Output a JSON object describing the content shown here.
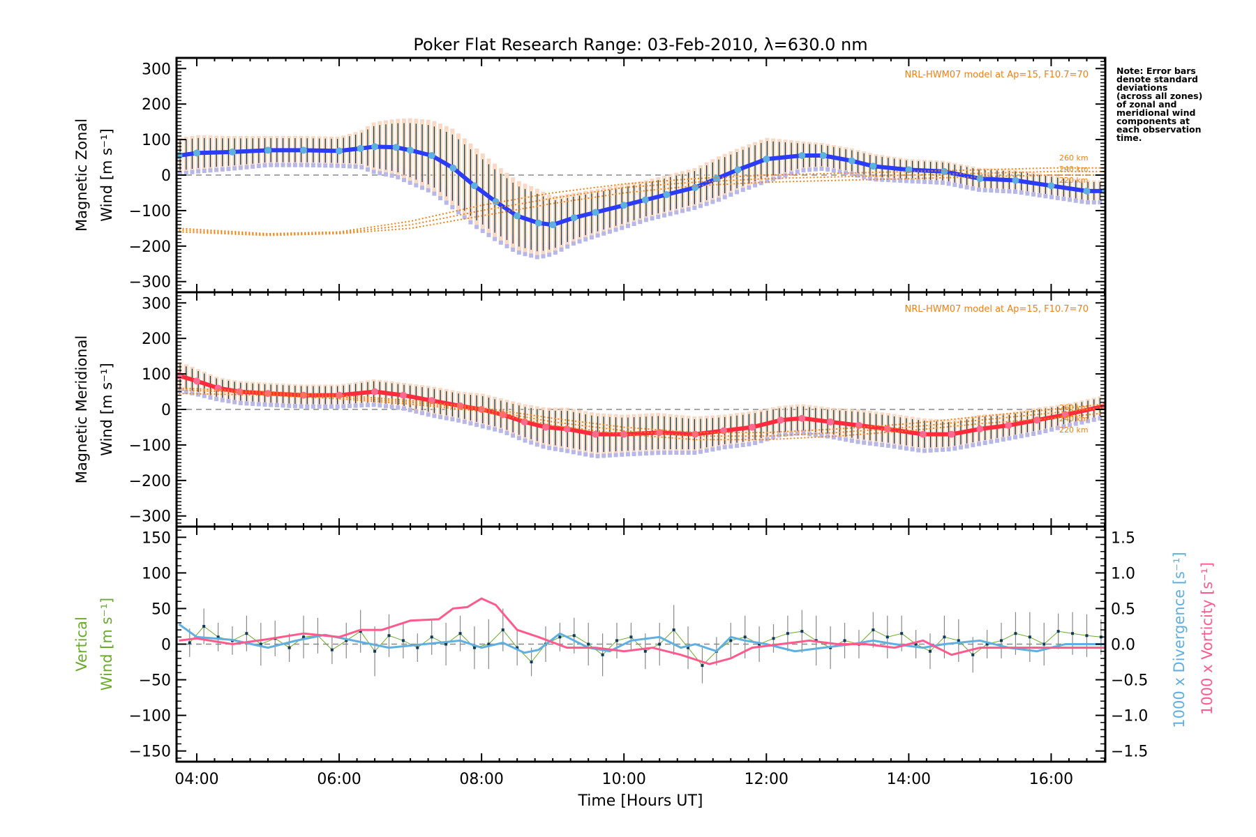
{
  "chart_data": [
    {
      "type": "line",
      "title": "Poker Flat Research Range: 03-Feb-2010, λ=630.0 nm",
      "ylabel_line1": "Magnetic Zonal",
      "ylabel_line2": "Wind [m s⁻¹]",
      "ylim": [
        -330,
        330
      ],
      "yticks": [
        300,
        200,
        100,
        0,
        -100,
        -200,
        -300
      ],
      "annotation": "NRL-HWM07 model at Ap=15, F10.7=70",
      "model_altitude_labels": [
        "260 km",
        "240 km",
        "220 km"
      ],
      "series": [
        {
          "name": "Zonal wind (mean)",
          "color": "#2a3cf5",
          "x": [
            3.75,
            4.0,
            4.5,
            5.0,
            5.5,
            6.0,
            6.3,
            6.5,
            6.8,
            7.0,
            7.3,
            7.6,
            7.9,
            8.2,
            8.5,
            8.8,
            9.0,
            9.3,
            9.6,
            10.0,
            10.3,
            10.6,
            11.0,
            11.3,
            11.6,
            12.0,
            12.5,
            12.8,
            13.2,
            13.5,
            14.0,
            14.5,
            15.0,
            15.5,
            16.0,
            16.5,
            16.76
          ],
          "y": [
            55,
            62,
            65,
            70,
            70,
            68,
            75,
            80,
            78,
            70,
            55,
            20,
            -30,
            -75,
            -115,
            -135,
            -140,
            -120,
            -105,
            -85,
            -70,
            -55,
            -35,
            -10,
            15,
            45,
            55,
            55,
            40,
            25,
            15,
            10,
            -10,
            -15,
            -30,
            -45,
            -45
          ],
          "error": [
            50,
            50,
            45,
            40,
            40,
            40,
            50,
            70,
            80,
            90,
            100,
            110,
            110,
            105,
            100,
            95,
            80,
            70,
            65,
            60,
            55,
            55,
            55,
            60,
            60,
            60,
            40,
            35,
            35,
            35,
            30,
            30,
            30,
            30,
            30,
            30,
            30
          ]
        },
        {
          "name": "NRL-HWM07 260 km",
          "color": "#f08010",
          "style": "dotted",
          "x": [
            3.75,
            5.0,
            6.0,
            7.0,
            8.0,
            9.0,
            10.0,
            11.0,
            12.0,
            13.0,
            14.0,
            15.0,
            16.0,
            16.76
          ],
          "y": [
            -150,
            -165,
            -160,
            -130,
            -85,
            -50,
            -25,
            -10,
            0,
            5,
            10,
            15,
            20,
            20
          ]
        },
        {
          "name": "NRL-HWM07 240 km",
          "color": "#f08010",
          "style": "dotted",
          "x": [
            3.75,
            5.0,
            6.0,
            7.0,
            8.0,
            9.0,
            10.0,
            11.0,
            12.0,
            13.0,
            14.0,
            15.0,
            16.0,
            16.76
          ],
          "y": [
            -155,
            -168,
            -163,
            -140,
            -100,
            -65,
            -35,
            -20,
            -10,
            -5,
            0,
            5,
            10,
            10
          ]
        },
        {
          "name": "NRL-HWM07 220 km",
          "color": "#f08010",
          "style": "dotted",
          "x": [
            3.75,
            5.0,
            6.0,
            7.0,
            8.0,
            9.0,
            10.0,
            11.0,
            12.0,
            13.0,
            14.0,
            15.0,
            16.0,
            16.76
          ],
          "y": [
            -160,
            -170,
            -165,
            -150,
            -115,
            -80,
            -50,
            -30,
            -20,
            -15,
            -10,
            -5,
            0,
            0
          ]
        }
      ]
    },
    {
      "type": "line",
      "ylabel_line1": "Magnetic Meridional",
      "ylabel_line2": "Wind [m s⁻¹]",
      "ylim": [
        -330,
        330
      ],
      "yticks": [
        300,
        200,
        100,
        0,
        -100,
        -200,
        -300
      ],
      "annotation": "NRL-HWM07 model at Ap=15, F10.7=70",
      "model_altitude_labels": [
        "260 km",
        "240 km",
        "220 km"
      ],
      "series": [
        {
          "name": "Meridional wind (mean)",
          "color": "#ff2a3c",
          "x": [
            3.75,
            4.0,
            4.3,
            4.6,
            5.0,
            5.5,
            6.0,
            6.5,
            6.9,
            7.3,
            7.7,
            8.0,
            8.3,
            8.6,
            8.9,
            9.2,
            9.6,
            10.0,
            10.5,
            11.0,
            11.4,
            11.8,
            12.2,
            12.5,
            12.9,
            13.3,
            13.7,
            14.2,
            14.6,
            15.0,
            15.4,
            15.8,
            16.2,
            16.76
          ],
          "y": [
            95,
            80,
            60,
            50,
            45,
            40,
            40,
            50,
            40,
            25,
            10,
            0,
            -15,
            -35,
            -50,
            -55,
            -70,
            -70,
            -65,
            -70,
            -60,
            -50,
            -30,
            -25,
            -35,
            -45,
            -55,
            -70,
            -70,
            -55,
            -45,
            -30,
            -15,
            10
          ],
          "error": [
            40,
            35,
            30,
            30,
            30,
            30,
            30,
            35,
            35,
            40,
            40,
            45,
            45,
            50,
            55,
            60,
            60,
            55,
            55,
            50,
            45,
            45,
            40,
            40,
            40,
            45,
            45,
            45,
            40,
            40,
            35,
            35,
            30,
            30
          ]
        },
        {
          "name": "NRL-HWM07 260 km",
          "color": "#f08010",
          "style": "dotted",
          "x": [
            3.75,
            5.0,
            6.0,
            7.0,
            8.0,
            9.0,
            10.0,
            11.0,
            12.0,
            13.0,
            14.0,
            15.0,
            16.0,
            16.76
          ],
          "y": [
            60,
            50,
            40,
            25,
            5,
            -25,
            -50,
            -65,
            -65,
            -55,
            -40,
            -20,
            0,
            15
          ]
        },
        {
          "name": "NRL-HWM07 240 km",
          "color": "#f08010",
          "style": "dotted",
          "x": [
            3.75,
            5.0,
            6.0,
            7.0,
            8.0,
            9.0,
            10.0,
            11.0,
            12.0,
            13.0,
            14.0,
            15.0,
            16.0,
            16.76
          ],
          "y": [
            55,
            45,
            35,
            20,
            0,
            -35,
            -60,
            -75,
            -75,
            -65,
            -50,
            -30,
            -10,
            5
          ]
        },
        {
          "name": "NRL-HWM07 220 km",
          "color": "#f08010",
          "style": "dotted",
          "x": [
            3.75,
            5.0,
            6.0,
            7.0,
            8.0,
            9.0,
            10.0,
            11.0,
            12.0,
            13.0,
            14.0,
            15.0,
            16.0,
            16.76
          ],
          "y": [
            45,
            40,
            30,
            15,
            -5,
            -45,
            -70,
            -85,
            -85,
            -75,
            -60,
            -40,
            -25,
            -10
          ]
        }
      ]
    },
    {
      "type": "line",
      "ylabel_line1": "Vertical",
      "ylabel_line2": "Wind [m s⁻¹]",
      "ylim": [
        -165,
        165
      ],
      "yticks": [
        150,
        100,
        50,
        0,
        -50,
        -100,
        -150
      ],
      "y2label_divergence": "1000 x Divergence [s⁻¹]",
      "y2label_vorticity": "1000 x Vorticity [s⁻¹]",
      "y2lim": [
        -1.65,
        1.65
      ],
      "y2ticks": [
        "1.5",
        "1.0",
        "0.5",
        "0.0",
        "−0.5",
        "−1.0",
        "−1.5"
      ],
      "xlabel": "Time [Hours UT]",
      "xlim": [
        3.716,
        16.76
      ],
      "xticks": [
        4,
        6,
        8,
        10,
        12,
        14,
        16
      ],
      "xticklabels": [
        "04:00",
        "06:00",
        "08:00",
        "10:00",
        "12:00",
        "14:00",
        "16:00"
      ],
      "series": [
        {
          "name": "Vertical wind",
          "color": "#6aaa2a",
          "axis": "left",
          "x": [
            3.9,
            4.1,
            4.3,
            4.5,
            4.7,
            4.9,
            5.1,
            5.3,
            5.5,
            5.7,
            5.9,
            6.1,
            6.3,
            6.5,
            6.7,
            6.9,
            7.1,
            7.3,
            7.5,
            7.7,
            7.9,
            8.1,
            8.3,
            8.5,
            8.7,
            8.9,
            9.1,
            9.3,
            9.5,
            9.7,
            9.9,
            10.1,
            10.3,
            10.5,
            10.7,
            10.9,
            11.1,
            11.3,
            11.5,
            11.7,
            11.9,
            12.1,
            12.3,
            12.5,
            12.7,
            12.9,
            13.1,
            13.3,
            13.5,
            13.7,
            13.9,
            14.1,
            14.3,
            14.5,
            14.7,
            14.9,
            15.1,
            15.3,
            15.5,
            15.7,
            15.9,
            16.1,
            16.3,
            16.5,
            16.7
          ],
          "y": [
            2,
            25,
            10,
            5,
            15,
            0,
            8,
            -5,
            10,
            12,
            -8,
            5,
            18,
            -10,
            12,
            5,
            -5,
            10,
            0,
            15,
            -5,
            0,
            20,
            -5,
            -25,
            0,
            10,
            12,
            0,
            -15,
            5,
            10,
            -10,
            0,
            20,
            -5,
            -30,
            -10,
            5,
            10,
            0,
            8,
            15,
            18,
            5,
            -5,
            5,
            0,
            20,
            10,
            15,
            0,
            -10,
            10,
            5,
            -15,
            0,
            5,
            15,
            10,
            0,
            18,
            15,
            12,
            10
          ],
          "error": [
            20,
            25,
            20,
            20,
            25,
            30,
            25,
            20,
            30,
            25,
            20,
            25,
            30,
            35,
            30,
            25,
            20,
            25,
            30,
            25,
            30,
            35,
            30,
            25,
            20,
            25,
            20,
            25,
            30,
            30,
            25,
            20,
            25,
            30,
            35,
            30,
            25,
            20,
            25,
            30,
            25,
            20,
            25,
            30,
            35,
            30,
            25,
            20,
            25,
            30,
            25,
            20,
            25,
            30,
            30,
            25,
            20,
            25,
            30,
            35,
            30,
            25,
            30,
            30,
            25
          ]
        },
        {
          "name": "1000 x Divergence",
          "color": "#5fb0e0",
          "axis": "right",
          "x": [
            3.75,
            4.0,
            4.5,
            5.0,
            5.4,
            5.8,
            6.2,
            6.7,
            7.2,
            7.7,
            8.0,
            8.3,
            8.6,
            8.8,
            9.1,
            9.5,
            9.8,
            10.1,
            10.5,
            10.8,
            11.0,
            11.3,
            11.5,
            11.7,
            12.0,
            12.4,
            12.8,
            13.2,
            13.5,
            13.8,
            14.2,
            14.5,
            15.0,
            15.4,
            15.8,
            16.2,
            16.76
          ],
          "y": [
            0.28,
            0.1,
            0.06,
            -0.05,
            0.05,
            0.13,
            0.05,
            -0.05,
            0.0,
            0.05,
            -0.05,
            0.02,
            -0.12,
            -0.08,
            0.15,
            -0.05,
            -0.1,
            0.05,
            0.1,
            -0.05,
            0.0,
            -0.1,
            0.1,
            0.05,
            0.0,
            -0.1,
            -0.05,
            0.0,
            0.05,
            0.0,
            -0.05,
            0.0,
            0.05,
            -0.05,
            -0.1,
            0.0,
            0.0
          ]
        },
        {
          "name": "1000 x Vorticity",
          "color": "#ff5a8c",
          "axis": "right",
          "x": [
            3.75,
            4.0,
            4.5,
            5.0,
            5.5,
            6.0,
            6.3,
            6.6,
            7.0,
            7.4,
            7.6,
            7.8,
            8.0,
            8.2,
            8.5,
            8.8,
            9.2,
            9.6,
            10.0,
            10.4,
            10.8,
            11.2,
            11.5,
            11.8,
            12.2,
            12.6,
            13.0,
            13.4,
            13.8,
            14.2,
            14.6,
            15.0,
            15.5,
            16.0,
            16.76
          ],
          "y": [
            0.05,
            0.08,
            0.0,
            0.07,
            0.15,
            0.1,
            0.2,
            0.2,
            0.33,
            0.35,
            0.5,
            0.52,
            0.64,
            0.55,
            0.2,
            0.1,
            -0.05,
            -0.05,
            -0.1,
            -0.05,
            -0.15,
            -0.28,
            -0.2,
            -0.05,
            0.0,
            0.05,
            0.0,
            0.0,
            -0.05,
            0.05,
            -0.15,
            -0.05,
            -0.05,
            -0.05,
            -0.05
          ]
        }
      ]
    }
  ],
  "note": "Note: Error bars\ndenote standard\ndeviations\n(across all zones)\nof zonal and\nmeridional wind\ncomponents at\neach observation\ntime."
}
